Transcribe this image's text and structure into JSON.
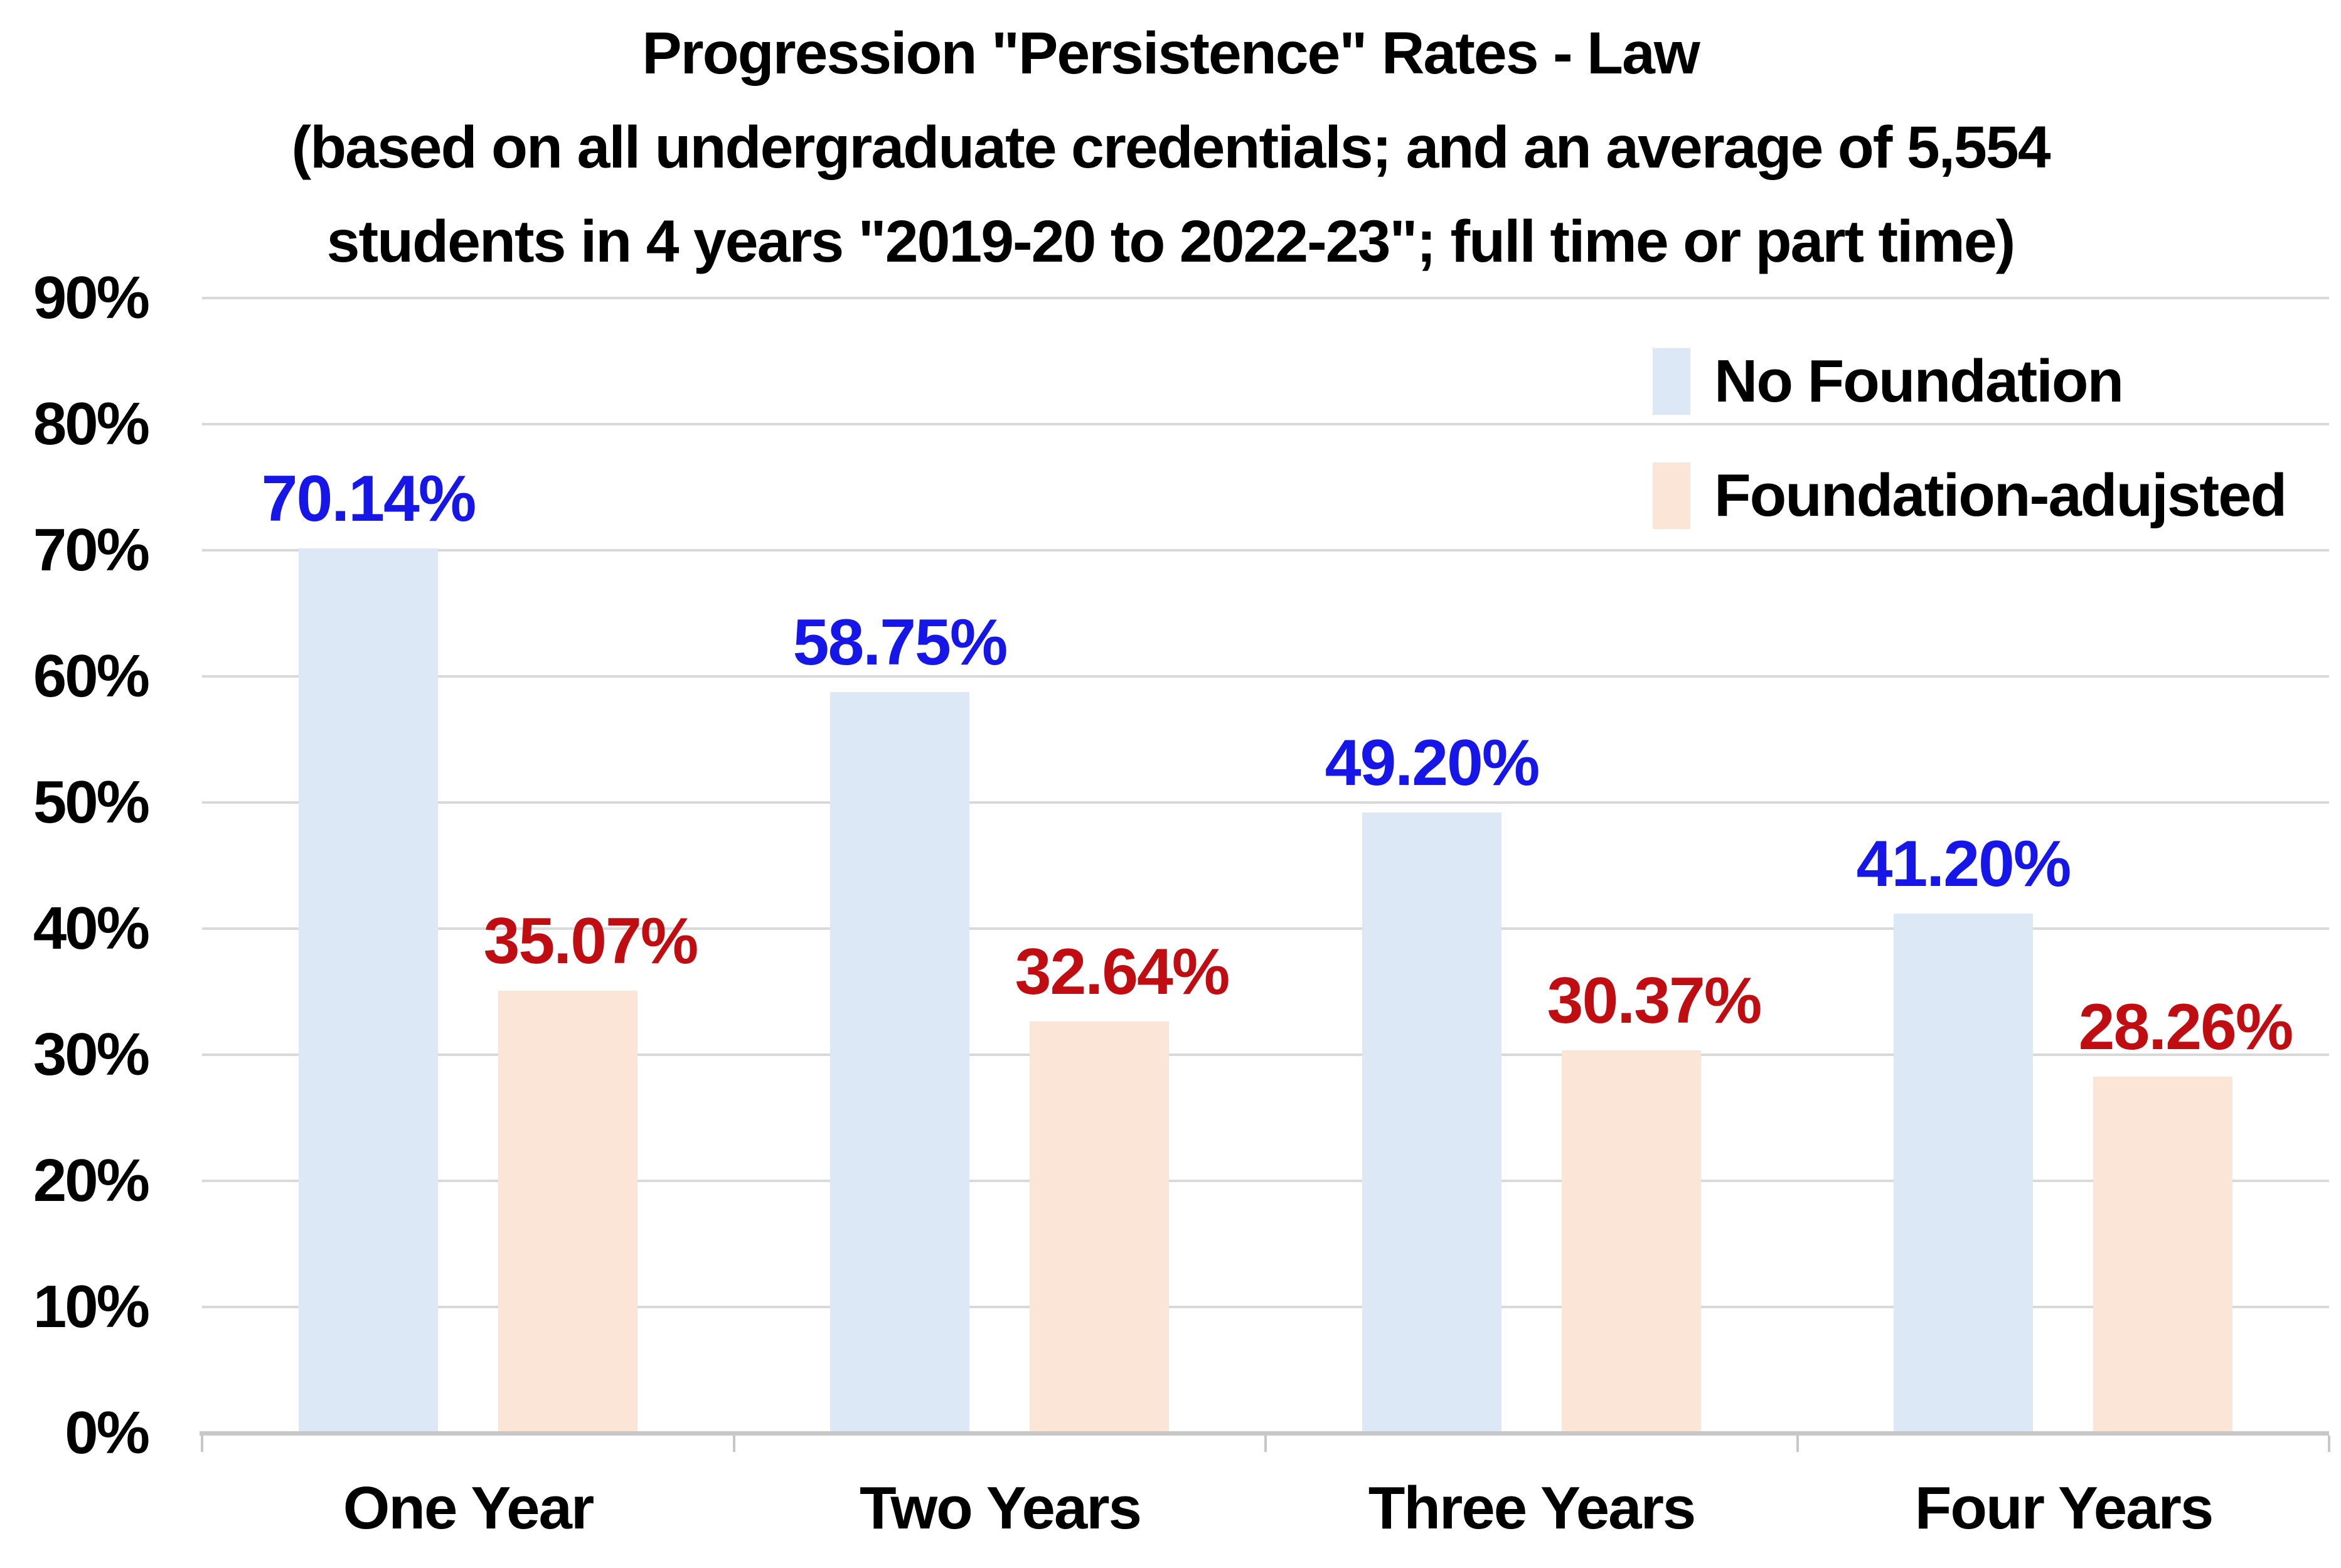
{
  "title": {
    "line1": "Progression \"Persistence\" Rates - Law",
    "line2": "(based on all undergraduate credentials; and an average of 5,554",
    "line3": "students in 4 years \"2019-20 to 2022-23\"; full time or part time)"
  },
  "legend": [
    {
      "label": "No Foundation",
      "color": "#dce8f5"
    },
    {
      "label": "Foundation-adujsted",
      "color": "#fbe5d6"
    }
  ],
  "chart_data": {
    "type": "bar",
    "title": "Progression \"Persistence\" Rates - Law (based on all undergraduate credentials; and an average of 5,554 students in 4 years \"2019-20 to 2022-23\"; full time or part time)",
    "categories": [
      "One Year",
      "Two Years",
      "Three Years",
      "Four Years"
    ],
    "series": [
      {
        "name": "No Foundation",
        "values": [
          70.14,
          58.75,
          49.2,
          41.2
        ],
        "labels": [
          "70.14%",
          "58.75%",
          "49.20%",
          "41.20%"
        ],
        "bar_color": "#dce8f5",
        "label_color": "#1616e8"
      },
      {
        "name": "Foundation-adujsted",
        "values": [
          35.07,
          32.64,
          30.37,
          28.26
        ],
        "labels": [
          "35.07%",
          "32.64%",
          "30.37%",
          "28.26%"
        ],
        "bar_color": "#fbe5d6",
        "label_color": "#c00d12"
      }
    ],
    "xlabel": "",
    "ylabel": "",
    "ylim": [
      0,
      90
    ],
    "ytick_step": 10,
    "ytick_labels": [
      "0%",
      "10%",
      "20%",
      "30%",
      "40%",
      "50%",
      "60%",
      "70%",
      "80%",
      "90%"
    ],
    "grid": true,
    "legend_position": "top-right"
  },
  "colors": {
    "background": "#ffffff",
    "gridline": "#d9d9d9",
    "axis": "#c7c7c7",
    "title_text": "#000000",
    "axis_text": "#000000"
  }
}
